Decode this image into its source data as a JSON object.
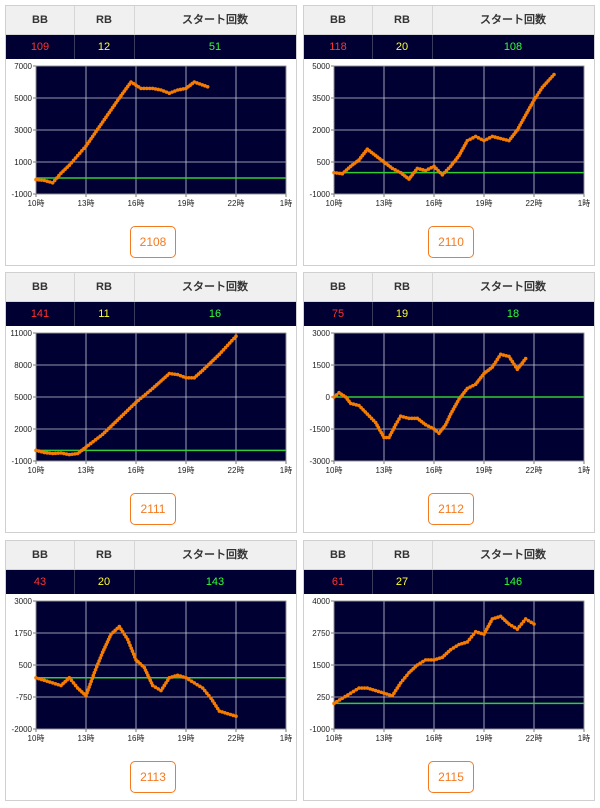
{
  "headers": {
    "bb": "BB",
    "rb": "RB",
    "start": "スタート回数"
  },
  "colors": {
    "bb": "#ff3333",
    "rb": "#ffff33",
    "start": "#33ff33",
    "line": "#f57c00",
    "zero": "#33cc33",
    "plot_bg": "#000033",
    "button": "#f47a20"
  },
  "machines": [
    {
      "number": "2108",
      "bb": "109",
      "rb": "12",
      "start": "51",
      "chart_data": {
        "type": "line",
        "x_ticks": [
          "10時",
          "13時",
          "16時",
          "19時",
          "22時",
          "1時"
        ],
        "y_ticks": [
          "7000",
          "5000",
          "3000",
          "1000",
          "-1000"
        ],
        "ylim": [
          -1000,
          7000
        ],
        "xlim": [
          10,
          25
        ],
        "grid": true,
        "series": [
          {
            "x": [
              10,
              10.5,
              11,
              11.5,
              12,
              13,
              14,
              15,
              15.7,
              16.3,
              17,
              17.5,
              18,
              18.5,
              19,
              19.5,
              20.3
            ],
            "values": [
              -100,
              -150,
              -300,
              300,
              800,
              2000,
              3500,
              5000,
              6000,
              5600,
              5600,
              5500,
              5300,
              5500,
              5600,
              6000,
              5700
            ]
          }
        ]
      }
    },
    {
      "number": "2110",
      "bb": "118",
      "rb": "20",
      "start": "108",
      "chart_data": {
        "type": "line",
        "x_ticks": [
          "10時",
          "13時",
          "16時",
          "19時",
          "22時",
          "1時"
        ],
        "y_ticks": [
          "5000",
          "3500",
          "2000",
          "500",
          "-1000"
        ],
        "ylim": [
          -1000,
          5000
        ],
        "xlim": [
          10,
          25
        ],
        "grid": true,
        "series": [
          {
            "x": [
              10,
              10.5,
              11,
              11.5,
              12,
              12.5,
              13,
              13.5,
              14,
              14.5,
              15,
              15.5,
              16,
              16.5,
              17,
              17.5,
              18,
              18.5,
              19,
              19.5,
              20,
              20.5,
              21,
              21.5,
              22,
              22.5,
              23.2
            ],
            "values": [
              0,
              -50,
              300,
              600,
              1100,
              800,
              500,
              200,
              0,
              -300,
              200,
              100,
              300,
              -100,
              300,
              800,
              1500,
              1700,
              1500,
              1700,
              1600,
              1500,
              2000,
              2700,
              3400,
              4000,
              4600
            ]
          }
        ]
      }
    },
    {
      "number": "2111",
      "bb": "141",
      "rb": "11",
      "start": "16",
      "chart_data": {
        "type": "line",
        "x_ticks": [
          "10時",
          "13時",
          "16時",
          "19時",
          "22時",
          "1時"
        ],
        "y_ticks": [
          "11000",
          "8000",
          "5000",
          "2000",
          "-1000"
        ],
        "ylim": [
          -1000,
          11000
        ],
        "xlim": [
          10,
          25
        ],
        "grid": true,
        "series": [
          {
            "x": [
              10,
              10.5,
              11,
              11.5,
              12,
              12.5,
              13,
              14,
              15,
              16,
              17,
              17.5,
              18,
              18.5,
              19,
              19.5,
              20,
              21,
              22
            ],
            "values": [
              0,
              -200,
              -300,
              -250,
              -400,
              -300,
              300,
              1500,
              3000,
              4500,
              5800,
              6500,
              7200,
              7100,
              6800,
              6800,
              7500,
              9000,
              10700
            ]
          }
        ]
      }
    },
    {
      "number": "2112",
      "bb": "75",
      "rb": "19",
      "start": "18",
      "chart_data": {
        "type": "line",
        "x_ticks": [
          "10時",
          "13時",
          "16時",
          "19時",
          "22時",
          "1時"
        ],
        "y_ticks": [
          "3000",
          "1500",
          "0",
          "-1500",
          "-3000"
        ],
        "ylim": [
          -3000,
          3000
        ],
        "xlim": [
          10,
          25
        ],
        "grid": true,
        "series": [
          {
            "x": [
              10,
              10.3,
              10.7,
              11,
              11.5,
              12,
              12.5,
              13,
              13.3,
              13.7,
              14,
              14.5,
              15,
              15.5,
              16,
              16.3,
              16.7,
              17,
              17.5,
              18,
              18.5,
              19,
              19.5,
              20,
              20.5,
              21,
              21.5
            ],
            "values": [
              0,
              200,
              0,
              -300,
              -400,
              -800,
              -1200,
              -1900,
              -1900,
              -1300,
              -900,
              -1000,
              -1000,
              -1300,
              -1500,
              -1700,
              -1300,
              -800,
              -100,
              400,
              600,
              1100,
              1400,
              2000,
              1900,
              1300,
              1800
            ]
          }
        ]
      }
    },
    {
      "number": "2113",
      "bb": "43",
      "rb": "20",
      "start": "143",
      "chart_data": {
        "type": "line",
        "x_ticks": [
          "10時",
          "13時",
          "16時",
          "19時",
          "22時",
          "1時"
        ],
        "y_ticks": [
          "3000",
          "1750",
          "500",
          "-750",
          "-2000"
        ],
        "ylim": [
          -2000,
          3000
        ],
        "xlim": [
          10,
          25
        ],
        "grid": true,
        "series": [
          {
            "x": [
              10,
              10.5,
              11,
              11.5,
              12,
              12.5,
              13,
              13.5,
              14,
              14.5,
              15,
              15.5,
              16,
              16.5,
              17,
              17.5,
              18,
              18.5,
              19,
              19.5,
              20,
              20.5,
              21,
              21.5,
              22
            ],
            "values": [
              0,
              -100,
              -200,
              -300,
              0,
              -400,
              -700,
              200,
              1000,
              1700,
              2000,
              1500,
              700,
              400,
              -300,
              -500,
              0,
              100,
              0,
              -200,
              -400,
              -800,
              -1300,
              -1400,
              -1500
            ]
          }
        ]
      }
    },
    {
      "number": "2115",
      "bb": "61",
      "rb": "27",
      "start": "146",
      "chart_data": {
        "type": "line",
        "x_ticks": [
          "10時",
          "13時",
          "16時",
          "19時",
          "22時",
          "1時"
        ],
        "y_ticks": [
          "4000",
          "2750",
          "1500",
          "250",
          "-1000"
        ],
        "ylim": [
          -1000,
          4000
        ],
        "xlim": [
          10,
          25
        ],
        "grid": true,
        "series": [
          {
            "x": [
              10,
              10.5,
              11,
              11.5,
              12,
              12.5,
              13,
              13.5,
              14,
              14.5,
              15,
              15.5,
              16,
              16.5,
              17,
              17.5,
              18,
              18.5,
              19,
              19.5,
              20,
              20.5,
              21,
              21.5,
              22
            ],
            "values": [
              0,
              200,
              400,
              600,
              600,
              500,
              400,
              300,
              800,
              1200,
              1500,
              1700,
              1700,
              1800,
              2100,
              2300,
              2400,
              2800,
              2700,
              3300,
              3400,
              3100,
              2900,
              3300,
              3100
            ]
          }
        ]
      }
    }
  ]
}
